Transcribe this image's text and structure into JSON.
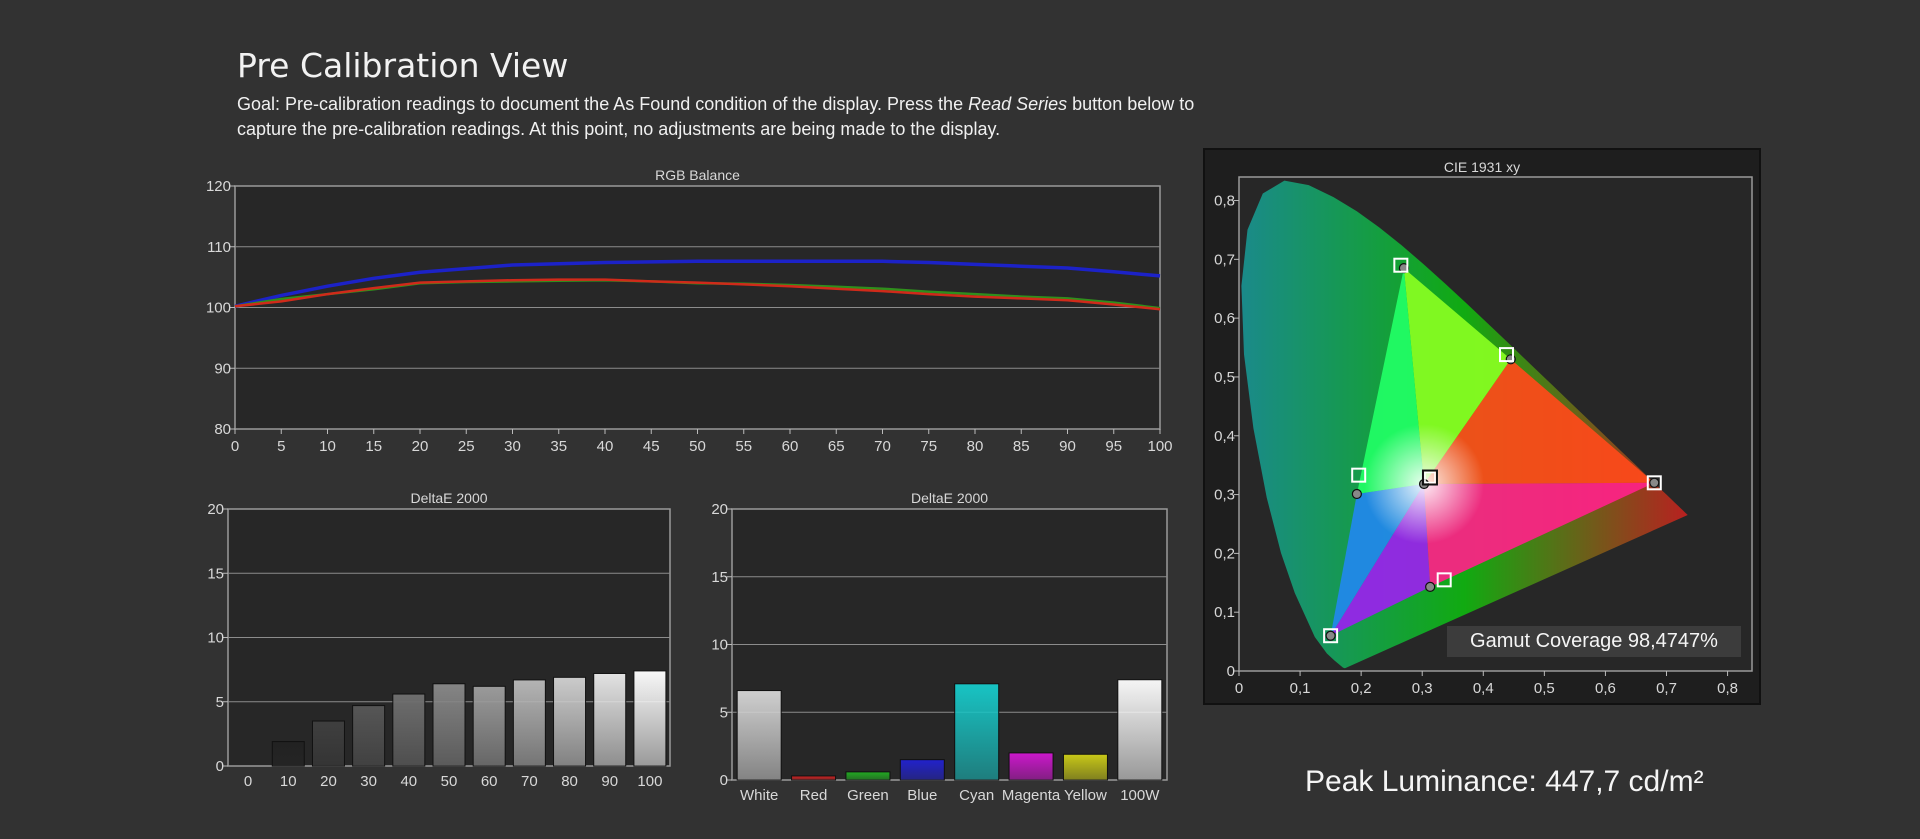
{
  "page": {
    "title": "Pre Calibration View",
    "goal_prefix": "Goal: Pre-calibration readings to document the As Found condition of the display. Press the ",
    "goal_emphasis": "Read Series",
    "goal_suffix": " button below to capture the pre-calibration readings. At this point, no adjustments are being made to the display.",
    "peak_luminance": "Peak Luminance: 447,7 cd/m²",
    "gamut_coverage": "Gamut Coverage 98,4747%"
  },
  "colors": {
    "background": "#323232",
    "plot_bg": "#272727",
    "gridline": "#8c8c8c",
    "red_series": "#d02a1a",
    "green_series": "#2f8f1c",
    "blue_series": "#1c22c8"
  },
  "chart_data": [
    {
      "id": "rgb-balance",
      "type": "line",
      "title": "RGB Balance",
      "x": [
        0,
        5,
        10,
        15,
        20,
        25,
        30,
        35,
        40,
        45,
        50,
        55,
        60,
        65,
        70,
        75,
        80,
        85,
        90,
        95,
        100
      ],
      "xticks": [
        "0",
        "5",
        "10",
        "15",
        "20",
        "25",
        "30",
        "35",
        "40",
        "45",
        "50",
        "55",
        "60",
        "65",
        "70",
        "75",
        "80",
        "85",
        "90",
        "95",
        "100"
      ],
      "yticks": [
        "80",
        "90",
        "100",
        "110",
        "120"
      ],
      "ylim": [
        80,
        120
      ],
      "xlim": [
        0,
        100
      ],
      "grid": true,
      "series": [
        {
          "color": "#1c22c8",
          "values": [
            100.2,
            102.0,
            103.5,
            104.8,
            105.8,
            106.4,
            107.0,
            107.2,
            107.4,
            107.5,
            107.6,
            107.6,
            107.6,
            107.6,
            107.6,
            107.4,
            107.1,
            106.8,
            106.5,
            105.9,
            105.2
          ]
        },
        {
          "color": "#2f8f1c",
          "values": [
            100.2,
            101.4,
            102.2,
            103.0,
            104.0,
            104.2,
            104.3,
            104.4,
            104.5,
            104.3,
            104.0,
            103.9,
            103.7,
            103.4,
            103.1,
            102.6,
            102.2,
            101.8,
            101.5,
            100.8,
            99.9
          ]
        },
        {
          "color": "#d02a1a",
          "values": [
            100.2,
            101.0,
            102.2,
            103.2,
            104.1,
            104.3,
            104.5,
            104.6,
            104.6,
            104.3,
            104.1,
            103.8,
            103.5,
            103.1,
            102.7,
            102.2,
            101.8,
            101.5,
            101.2,
            100.5,
            99.7
          ]
        }
      ]
    },
    {
      "id": "deltae-grayscale",
      "type": "bar",
      "title": "DeltaE 2000",
      "categories": [
        "0",
        "10",
        "20",
        "30",
        "40",
        "50",
        "60",
        "70",
        "80",
        "90",
        "100"
      ],
      "values": [
        0,
        1.9,
        3.5,
        4.7,
        5.6,
        6.4,
        6.2,
        6.7,
        6.9,
        7.2,
        7.4
      ],
      "bar_colors": [
        "#000000",
        "#222222",
        "#3f3f3f",
        "#565656",
        "#6e6e6e",
        "#858585",
        "#9a9a9a",
        "#b4b4b4",
        "#cbcbcb",
        "#e2e2e2",
        "#f8f8f8"
      ],
      "yticks": [
        "0",
        "5",
        "10",
        "15",
        "20"
      ],
      "ylim": [
        0,
        20
      ],
      "grid": true
    },
    {
      "id": "deltae-colors",
      "type": "bar",
      "title": "DeltaE 2000",
      "categories": [
        "White",
        "Red",
        "Green",
        "Blue",
        "Cyan",
        "Magenta",
        "Yellow",
        "100W"
      ],
      "values": [
        6.6,
        0.3,
        0.6,
        1.5,
        7.1,
        2.0,
        1.9,
        7.4
      ],
      "bar_colors": [
        "#cfcfcf",
        "#cc2222",
        "#22aa22",
        "#2222cc",
        "#18c4c4",
        "#cc18cc",
        "#c8c818",
        "#f5f5f5"
      ],
      "yticks": [
        "0",
        "5",
        "10",
        "15",
        "20"
      ],
      "ylim": [
        0,
        20
      ],
      "grid": true
    },
    {
      "id": "cie-1931",
      "type": "scatter",
      "title": "CIE 1931 xy",
      "xticks": [
        "0",
        "0,1",
        "0,2",
        "0,3",
        "0,4",
        "0,5",
        "0,6",
        "0,7",
        "0,8"
      ],
      "yticks": [
        "0",
        "0,1",
        "0,2",
        "0,3",
        "0,4",
        "0,5",
        "0,6",
        "0,7",
        "0,8"
      ],
      "xlim": [
        0,
        0.84
      ],
      "ylim": [
        0,
        0.84
      ],
      "targets": [
        {
          "name": "Red",
          "x": 0.68,
          "y": 0.32
        },
        {
          "name": "Green",
          "x": 0.265,
          "y": 0.69
        },
        {
          "name": "Blue",
          "x": 0.15,
          "y": 0.06
        },
        {
          "name": "Cyan",
          "x": 0.196,
          "y": 0.333
        },
        {
          "name": "Magenta",
          "x": 0.336,
          "y": 0.155
        },
        {
          "name": "Yellow",
          "x": 0.438,
          "y": 0.538
        },
        {
          "name": "White",
          "x": 0.3127,
          "y": 0.329
        }
      ],
      "measured": [
        {
          "name": "Red",
          "x": 0.68,
          "y": 0.32
        },
        {
          "name": "Green",
          "x": 0.27,
          "y": 0.685
        },
        {
          "name": "Blue",
          "x": 0.15,
          "y": 0.06
        },
        {
          "name": "Cyan",
          "x": 0.193,
          "y": 0.301
        },
        {
          "name": "Magenta",
          "x": 0.313,
          "y": 0.143
        },
        {
          "name": "Yellow",
          "x": 0.445,
          "y": 0.53
        },
        {
          "name": "White",
          "x": 0.303,
          "y": 0.318
        }
      ],
      "gamut_coverage_percent": 98.4747
    }
  ]
}
